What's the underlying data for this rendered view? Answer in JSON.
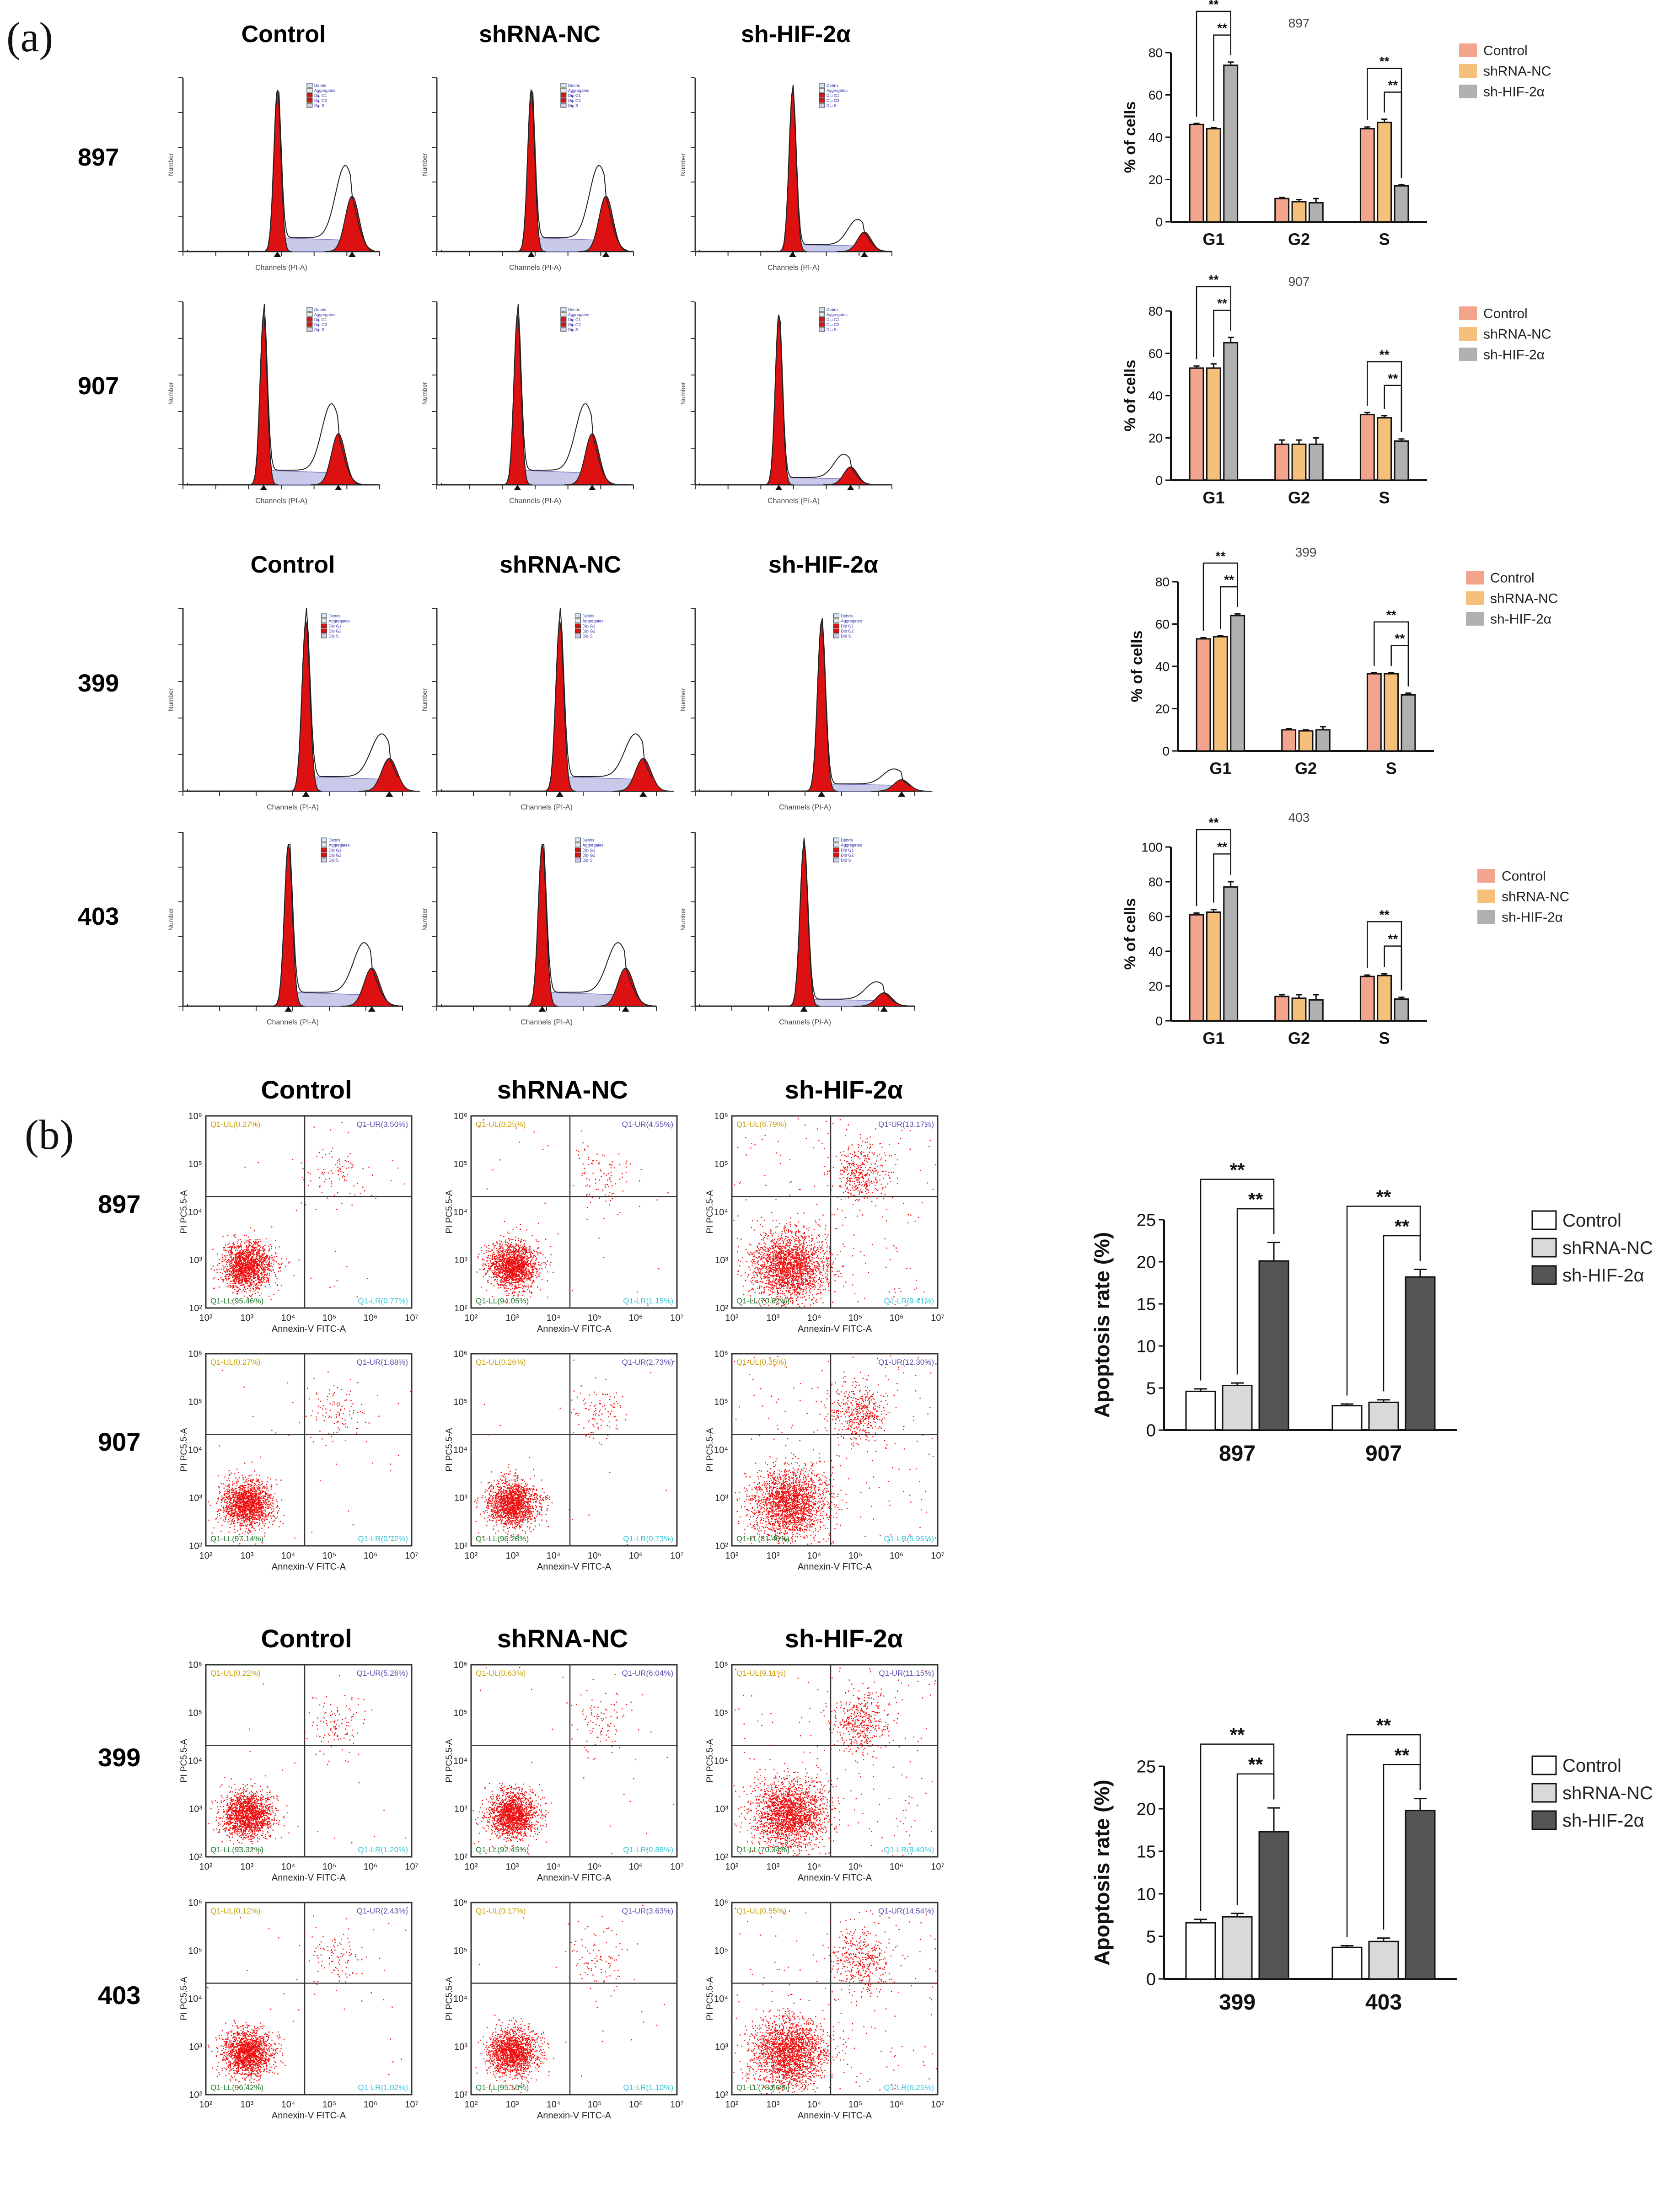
{
  "panels": {
    "a": {
      "letter": "(a)",
      "col_headers": [
        "Control",
        "shRNA-NC",
        "sh-HIF-2α"
      ],
      "rows": [
        "897",
        "907",
        "399",
        "403"
      ],
      "histogram_xlabel": "Channels (PI-A)",
      "histogram_ylabel": "Number",
      "histogram_legend": [
        "Debris",
        "Aggregates",
        "Dip G1",
        "Dip G2",
        "Dip S"
      ]
    },
    "b": {
      "letter": "(b)",
      "col_headers": [
        "Control",
        "shRNA-NC",
        "sh-HIF-2α"
      ],
      "rows": [
        "897",
        "907",
        "399",
        "403"
      ],
      "scatter_xlabel": "Annexin-V FITC-A",
      "scatter_ylabel": "PI PC5.5-A",
      "x_ticks": [
        "10²",
        "10³",
        "10⁴",
        "10⁵",
        "10⁶",
        "10⁷"
      ],
      "y_ticks": [
        "10²",
        "10³",
        "10⁴",
        "10⁵",
        "10⁶"
      ],
      "quadrants": [
        {
          "row": "897",
          "col": "Control",
          "ul": "Q1-UL(0.27%)",
          "ur": "Q1-UR(3.50%)",
          "ll": "Q1-LL(95.46%)",
          "lr": "Q1-LR(0.77%)"
        },
        {
          "row": "897",
          "col": "shRNA-NC",
          "ul": "Q1-UL(0.25%)",
          "ur": "Q1-UR(4.55%)",
          "ll": "Q1-LL(94.05%)",
          "lr": "Q1-LR(1.15%)"
        },
        {
          "row": "897",
          "col": "sh-HIF-2α",
          "ul": "Q1-UL(6.79%)",
          "ur": "Q1-UR(13.17%)",
          "ll": "Q1-LL(70.62%)",
          "lr": "Q1-LR(9.41%)"
        },
        {
          "row": "907",
          "col": "Control",
          "ul": "Q1-UL(0.27%)",
          "ur": "Q1-UR(1.88%)",
          "ll": "Q1-LL(97.14%)",
          "lr": "Q1-LR(0.72%)"
        },
        {
          "row": "907",
          "col": "shRNA-NC",
          "ul": "Q1-UL(0.26%)",
          "ur": "Q1-UR(2.73%)",
          "ll": "Q1-LL(96.28%)",
          "lr": "Q1-LR(0.73%)"
        },
        {
          "row": "907",
          "col": "sh-HIF-2α",
          "ul": "Q1-UL(0.35%)",
          "ur": "Q1-UR(12.30%)",
          "ll": "Q1-LL(81.40%)",
          "lr": "Q1-LR(5.95%)"
        },
        {
          "row": "399",
          "col": "Control",
          "ul": "Q1-UL(0.22%)",
          "ur": "Q1-UR(5.26%)",
          "ll": "Q1-LL(93.32%)",
          "lr": "Q1-LR(1.20%)"
        },
        {
          "row": "399",
          "col": "shRNA-NC",
          "ul": "Q1-UL(0.63%)",
          "ur": "Q1-UR(6.04%)",
          "ll": "Q1-LL(92.45%)",
          "lr": "Q1-LR(0.88%)"
        },
        {
          "row": "399",
          "col": "sh-HIF-2α",
          "ul": "Q1-UL(9.11%)",
          "ur": "Q1-UR(11.15%)",
          "ll": "Q1-LL(70.34%)",
          "lr": "Q1-LR(9.40%)"
        },
        {
          "row": "403",
          "col": "Control",
          "ul": "Q1-UL(0.12%)",
          "ur": "Q1-UR(2.43%)",
          "ll": "Q1-LL(96.42%)",
          "lr": "Q1-LR(1.02%)"
        },
        {
          "row": "403",
          "col": "shRNA-NC",
          "ul": "Q1-UL(0.17%)",
          "ur": "Q1-UR(3.63%)",
          "ll": "Q1-LL(95.10%)",
          "lr": "Q1-LR(1.10%)"
        },
        {
          "row": "403",
          "col": "sh-HIF-2α",
          "ul": "Q1-UL(0.55%)",
          "ur": "Q1-UR(14.54%)",
          "ll": "Q1-LL(78.66%)",
          "lr": "Q1-LR(6.25%)"
        }
      ]
    }
  },
  "chart_data": [
    {
      "type": "bar",
      "panel": "a",
      "title": "897",
      "categories": [
        "G1",
        "G2",
        "S"
      ],
      "ylabel": "% of cells",
      "ylim": [
        0,
        80
      ],
      "yticks": [
        0,
        20,
        40,
        60,
        80
      ],
      "series": [
        {
          "name": "Control",
          "values": [
            46,
            11,
            44
          ],
          "errors": [
            0.5,
            0.5,
            0.8
          ]
        },
        {
          "name": "shRNA-NC",
          "values": [
            44,
            9.5,
            47
          ],
          "errors": [
            0.5,
            1,
            1.5
          ]
        },
        {
          "name": "sh-HIF-2α",
          "values": [
            74,
            9,
            17
          ],
          "errors": [
            1.5,
            2,
            0.5
          ]
        }
      ],
      "annotations": [
        {
          "text": "**",
          "group": 0,
          "from": 0,
          "to": 2
        },
        {
          "text": "**",
          "group": 0,
          "from": 1,
          "to": 2
        },
        {
          "text": "**",
          "group": 2,
          "from": 0,
          "to": 2
        },
        {
          "text": "**",
          "group": 2,
          "from": 1,
          "to": 2
        }
      ]
    },
    {
      "type": "bar",
      "panel": "a",
      "title": "907",
      "categories": [
        "G1",
        "G2",
        "S"
      ],
      "ylabel": "% of cells",
      "ylim": [
        0,
        80
      ],
      "yticks": [
        0,
        20,
        40,
        60,
        80
      ],
      "series": [
        {
          "name": "Control",
          "values": [
            53,
            17,
            31
          ],
          "errors": [
            1,
            2,
            1
          ]
        },
        {
          "name": "shRNA-NC",
          "values": [
            53,
            17,
            29.5
          ],
          "errors": [
            2,
            2,
            1
          ]
        },
        {
          "name": "sh-HIF-2α",
          "values": [
            65,
            17,
            18.5
          ],
          "errors": [
            2.5,
            3,
            1
          ]
        }
      ],
      "annotations": [
        {
          "text": "**",
          "group": 0,
          "from": 0,
          "to": 2
        },
        {
          "text": "**",
          "group": 0,
          "from": 1,
          "to": 2
        },
        {
          "text": "**",
          "group": 2,
          "from": 0,
          "to": 2
        },
        {
          "text": "**",
          "group": 2,
          "from": 1,
          "to": 2
        }
      ]
    },
    {
      "type": "bar",
      "panel": "a",
      "title": "399",
      "categories": [
        "G1",
        "G2",
        "S"
      ],
      "ylabel": "% of cells",
      "ylim": [
        0,
        80
      ],
      "yticks": [
        0,
        20,
        40,
        60,
        80
      ],
      "series": [
        {
          "name": "Control",
          "values": [
            53,
            10,
            36.5
          ],
          "errors": [
            0.5,
            0.5,
            0.5
          ]
        },
        {
          "name": "shRNA-NC",
          "values": [
            54,
            9.5,
            36.5
          ],
          "errors": [
            0.5,
            0.5,
            0.5
          ]
        },
        {
          "name": "sh-HIF-2α",
          "values": [
            64,
            10,
            26.5
          ],
          "errors": [
            0.8,
            1.5,
            0.8
          ]
        }
      ],
      "annotations": [
        {
          "text": "**",
          "group": 0,
          "from": 0,
          "to": 2
        },
        {
          "text": "**",
          "group": 0,
          "from": 1,
          "to": 2
        },
        {
          "text": "**",
          "group": 2,
          "from": 0,
          "to": 2
        },
        {
          "text": "**",
          "group": 2,
          "from": 1,
          "to": 2
        }
      ]
    },
    {
      "type": "bar",
      "panel": "a",
      "title": "403",
      "categories": [
        "G1",
        "G2",
        "S"
      ],
      "ylabel": "% of cells",
      "ylim": [
        0,
        100
      ],
      "yticks": [
        0,
        20,
        40,
        60,
        80,
        100
      ],
      "series": [
        {
          "name": "Control",
          "values": [
            61,
            14,
            25.5
          ],
          "errors": [
            1,
            1,
            0.8
          ]
        },
        {
          "name": "shRNA-NC",
          "values": [
            62.5,
            13,
            26
          ],
          "errors": [
            1.5,
            2,
            1
          ]
        },
        {
          "name": "sh-HIF-2α",
          "values": [
            77,
            12,
            12.5
          ],
          "errors": [
            3,
            3,
            1
          ]
        }
      ],
      "annotations": [
        {
          "text": "**",
          "group": 0,
          "from": 0,
          "to": 2
        },
        {
          "text": "**",
          "group": 0,
          "from": 1,
          "to": 2
        },
        {
          "text": "**",
          "group": 2,
          "from": 0,
          "to": 2
        },
        {
          "text": "**",
          "group": 2,
          "from": 1,
          "to": 2
        }
      ]
    },
    {
      "type": "bar",
      "panel": "b",
      "title": "",
      "categories": [
        "897",
        "907"
      ],
      "ylabel": "Apoptosis rate (%)",
      "ylim": [
        0,
        25
      ],
      "yticks": [
        0,
        5,
        10,
        15,
        20,
        25
      ],
      "series": [
        {
          "name": "Control",
          "values": [
            4.6,
            2.9
          ],
          "errors": [
            0.3,
            0.2
          ]
        },
        {
          "name": "shRNA-NC",
          "values": [
            5.3,
            3.3
          ],
          "errors": [
            0.3,
            0.3
          ]
        },
        {
          "name": "sh-HIF-2α",
          "values": [
            20.1,
            18.2
          ],
          "errors": [
            2.2,
            0.9
          ]
        }
      ],
      "annotations": [
        {
          "text": "**",
          "group": 0,
          "from": 0,
          "to": 2
        },
        {
          "text": "**",
          "group": 0,
          "from": 1,
          "to": 2
        },
        {
          "text": "**",
          "group": 1,
          "from": 0,
          "to": 2
        },
        {
          "text": "**",
          "group": 1,
          "from": 1,
          "to": 2
        }
      ]
    },
    {
      "type": "bar",
      "panel": "b",
      "title": "",
      "categories": [
        "399",
        "403"
      ],
      "ylabel": "Apoptosis rate (%)",
      "ylim": [
        0,
        25
      ],
      "yticks": [
        0,
        5,
        10,
        15,
        20,
        25
      ],
      "series": [
        {
          "name": "Control",
          "values": [
            6.6,
            3.7
          ],
          "errors": [
            0.4,
            0.2
          ]
        },
        {
          "name": "shRNA-NC",
          "values": [
            7.3,
            4.4
          ],
          "errors": [
            0.4,
            0.4
          ]
        },
        {
          "name": "sh-HIF-2α",
          "values": [
            17.3,
            19.8
          ],
          "errors": [
            2.8,
            1.4
          ]
        }
      ],
      "annotations": [
        {
          "text": "**",
          "group": 0,
          "from": 0,
          "to": 2
        },
        {
          "text": "**",
          "group": 0,
          "from": 1,
          "to": 2
        },
        {
          "text": "**",
          "group": 1,
          "from": 0,
          "to": 2
        },
        {
          "text": "**",
          "group": 1,
          "from": 1,
          "to": 2
        }
      ]
    }
  ],
  "colors": {
    "cycle": [
      "#f2a48c",
      "#f7c07a",
      "#b0b0b0"
    ],
    "apoptosis": [
      "#ffffff",
      "#d9d9d9",
      "#555555"
    ],
    "histogram_fill": "#dd1111",
    "histogram_sfill": "#c9c9ea",
    "dots": "#ee1010"
  }
}
